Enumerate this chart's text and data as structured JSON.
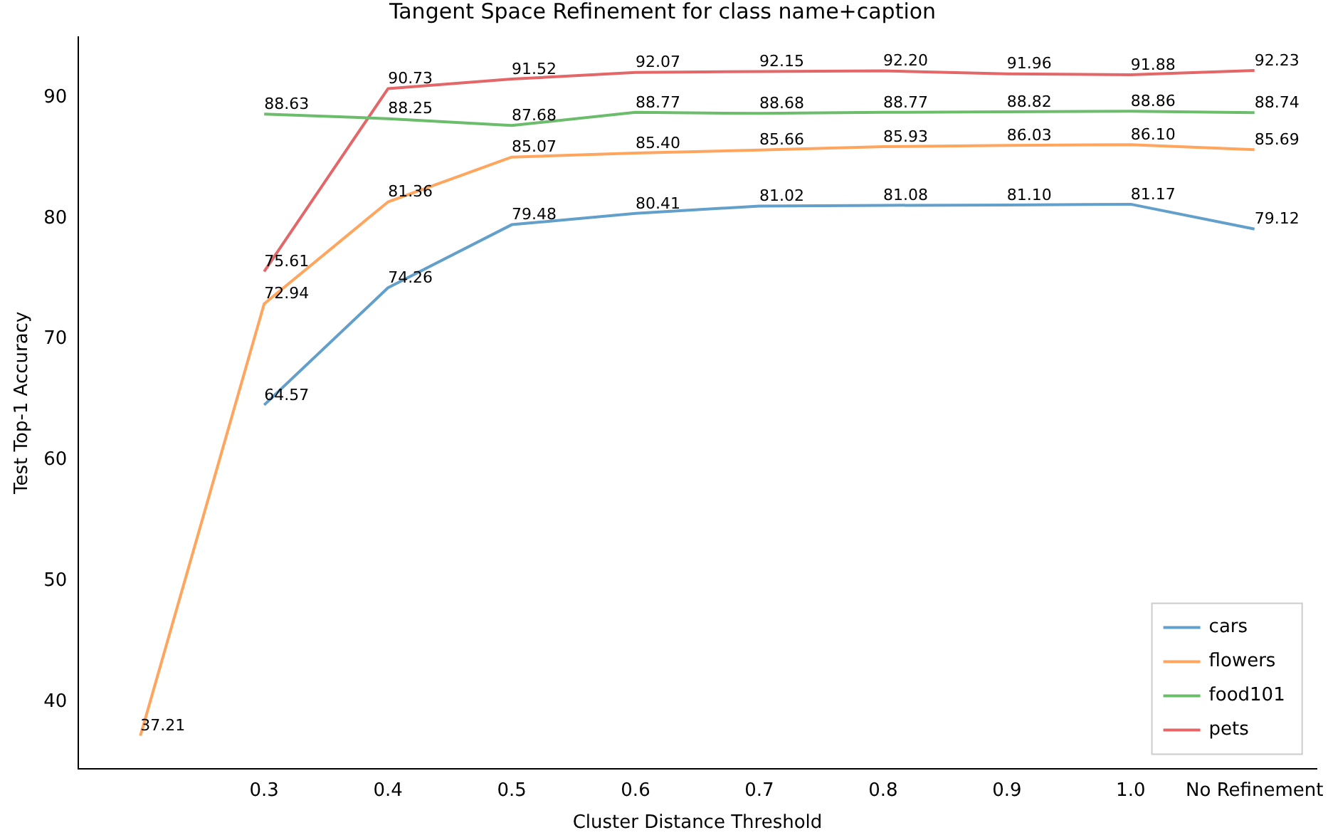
{
  "chart_data": {
    "type": "line",
    "title": "Tangent Space Refinement for class name+caption",
    "xlabel": "Cluster Distance Threshold",
    "ylabel": "Test Top-1 Accuracy",
    "categories": [
      null,
      "0.3",
      "0.4",
      "0.5",
      "0.6",
      "0.7",
      "0.8",
      "0.9",
      "1.0",
      "No Refinement"
    ],
    "series": [
      {
        "name": "cars",
        "color": "#629fcb",
        "values": [
          null,
          64.57,
          74.26,
          79.48,
          80.41,
          81.02,
          81.08,
          81.1,
          81.17,
          79.12
        ],
        "value_labels": [
          null,
          "64.57",
          "74.26",
          "79.48",
          "80.41",
          "81.02",
          "81.08",
          "81.10",
          "81.17",
          "79.12"
        ]
      },
      {
        "name": "flowers",
        "color": "#ffa55e",
        "values": [
          37.21,
          72.94,
          81.36,
          85.07,
          85.4,
          85.66,
          85.93,
          86.03,
          86.1,
          85.69
        ],
        "value_labels": [
          "37.21",
          "72.94",
          "81.36",
          "85.07",
          "85.40",
          "85.66",
          "85.93",
          "86.03",
          "86.10",
          "85.69"
        ]
      },
      {
        "name": "food101",
        "color": "#6bbc6b",
        "values": [
          null,
          88.63,
          88.25,
          87.68,
          88.77,
          88.68,
          88.77,
          88.82,
          88.86,
          88.74
        ],
        "value_labels": [
          null,
          "88.63",
          "88.25",
          "87.68",
          "88.77",
          "88.68",
          "88.77",
          "88.82",
          "88.86",
          "88.74"
        ]
      },
      {
        "name": "pets",
        "color": "#e36768",
        "values": [
          null,
          75.61,
          90.73,
          91.52,
          92.07,
          92.15,
          92.2,
          91.96,
          91.88,
          92.23
        ],
        "value_labels": [
          null,
          "75.61",
          "90.73",
          "91.52",
          "92.07",
          "92.15",
          "92.20",
          "91.96",
          "91.88",
          "92.23"
        ]
      }
    ],
    "ylim": [
      34.5,
      95
    ],
    "yticks": [
      40,
      50,
      60,
      70,
      80,
      90
    ],
    "grid": false,
    "legend": "bottom right",
    "marker": "none",
    "line_style": "solid"
  }
}
